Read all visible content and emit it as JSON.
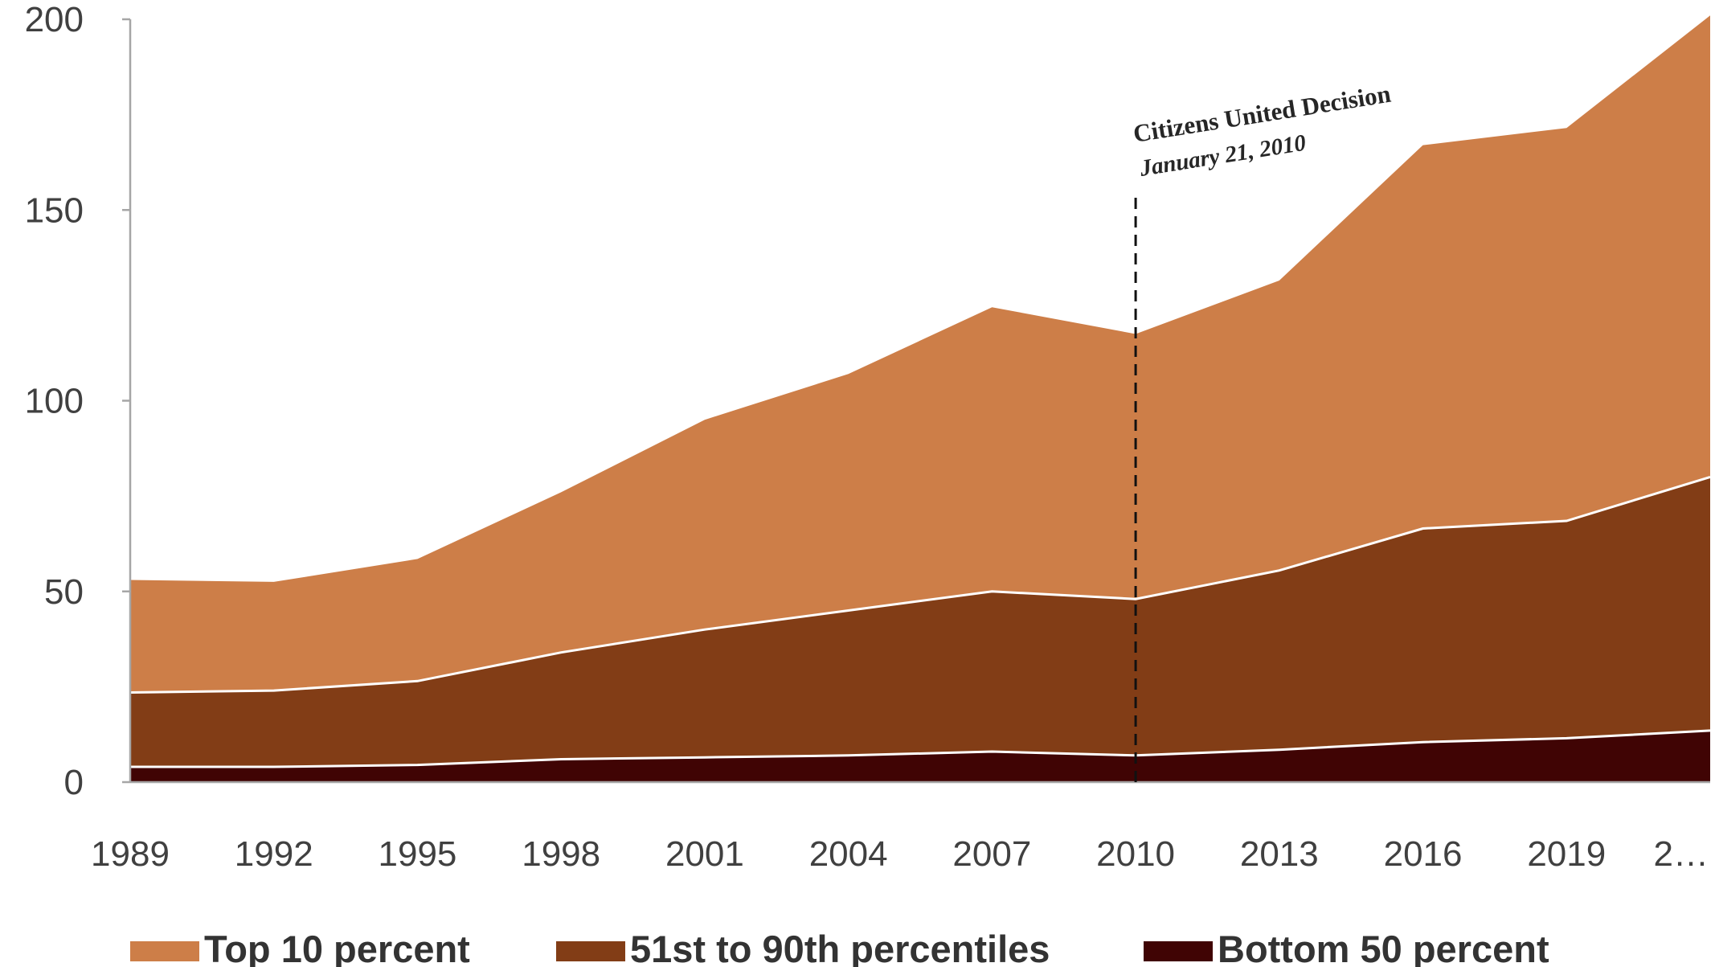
{
  "chart_data": {
    "type": "area",
    "stacked": true,
    "categories": [
      "1989",
      "1992",
      "1995",
      "1998",
      "2001",
      "2004",
      "2007",
      "2010",
      "2013",
      "2016",
      "2019",
      "2…"
    ],
    "series": [
      {
        "name": "Bottom 50 percent",
        "color": "#400404",
        "values": [
          4,
          4,
          4.5,
          6,
          6.5,
          7,
          8,
          7,
          8.5,
          10.5,
          11.5,
          13.5
        ]
      },
      {
        "name": "51st to 90th percentiles",
        "color": "#823d16",
        "values": [
          19.5,
          20,
          22,
          28,
          33.5,
          38,
          42,
          41,
          47,
          56,
          57,
          66.5
        ]
      },
      {
        "name": "Top 10 percent",
        "color": "#cd7e48",
        "values": [
          29.5,
          28.5,
          32,
          42,
          55,
          62,
          74.5,
          69.5,
          76,
          100.5,
          103,
          121
        ]
      }
    ],
    "ylim": [
      0,
      200
    ],
    "yticks": [
      "0",
      "50",
      "100",
      "150",
      "200"
    ],
    "legend_position": "bottom",
    "annotation": {
      "x_category": "2010",
      "title": "Citizens United Decision",
      "date": "January 21, 2010",
      "line_style": "dashed"
    }
  }
}
